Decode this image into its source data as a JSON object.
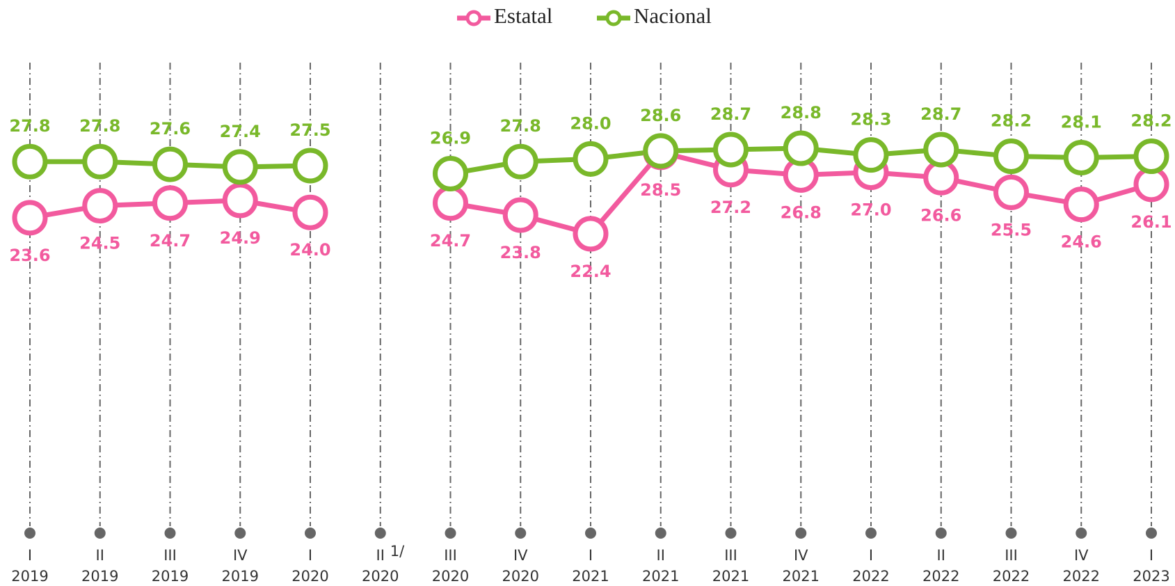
{
  "chart_data": {
    "type": "line",
    "categories": [
      {
        "quarter": "I",
        "year": "2019"
      },
      {
        "quarter": "II",
        "year": "2019"
      },
      {
        "quarter": "III",
        "year": "2019"
      },
      {
        "quarter": "IV",
        "year": "2019"
      },
      {
        "quarter": "I",
        "year": "2020"
      },
      {
        "quarter": "II",
        "year": "2020",
        "note": "1/"
      },
      {
        "quarter": "III",
        "year": "2020"
      },
      {
        "quarter": "IV",
        "year": "2020"
      },
      {
        "quarter": "I",
        "year": "2021"
      },
      {
        "quarter": "II",
        "year": "2021"
      },
      {
        "quarter": "III",
        "year": "2021"
      },
      {
        "quarter": "IV",
        "year": "2021"
      },
      {
        "quarter": "I",
        "year": "2022"
      },
      {
        "quarter": "II",
        "year": "2022"
      },
      {
        "quarter": "III",
        "year": "2022"
      },
      {
        "quarter": "IV",
        "year": "2022"
      },
      {
        "quarter": "I",
        "year": "2023"
      }
    ],
    "series": [
      {
        "name": "Estatal",
        "color": "#f25a9e",
        "label_position": "below",
        "values": [
          23.6,
          24.5,
          24.7,
          24.9,
          24.0,
          null,
          24.7,
          23.8,
          22.4,
          28.5,
          27.2,
          26.8,
          27.0,
          26.6,
          25.5,
          24.6,
          26.1
        ],
        "value_labels": [
          "23.6",
          "24.5",
          "24.7",
          "24.9",
          "24.0",
          null,
          "24.7",
          "23.8",
          "22.4",
          "28.5",
          "27.2",
          "26.8",
          "27.0",
          "26.6",
          "25.5",
          "24.6",
          "26.1"
        ]
      },
      {
        "name": "Nacional",
        "color": "#79b82a",
        "label_position": "above",
        "values": [
          27.8,
          27.8,
          27.6,
          27.4,
          27.5,
          null,
          26.9,
          27.8,
          28.0,
          28.6,
          28.7,
          28.8,
          28.3,
          28.7,
          28.2,
          28.1,
          28.2
        ],
        "value_labels": [
          "27.8",
          "27.8",
          "27.6",
          "27.4",
          "27.5",
          null,
          "26.9",
          "27.8",
          "28.0",
          "28.6",
          "28.7",
          "28.8",
          "28.3",
          "28.7",
          "28.2",
          "28.1",
          "28.2"
        ]
      }
    ],
    "ylim": [
      0,
      40
    ],
    "legend": "top"
  }
}
